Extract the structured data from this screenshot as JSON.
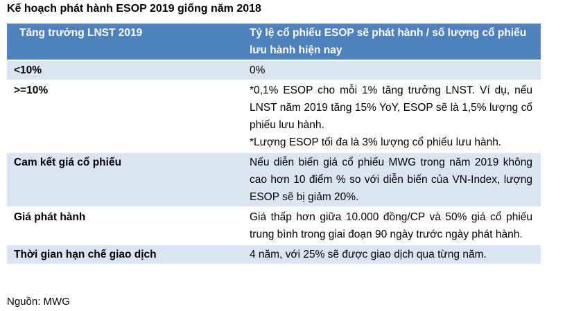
{
  "title": "Kế hoạch phát hành ESOP 2019 giống năm 2018",
  "table": {
    "header": [
      "Tăng trưởng LNST 2019",
      "Tỷ lệ cổ phiếu ESOP sẽ phát hành / số lượng cổ phiếu lưu hành hiện nay"
    ],
    "rows": [
      [
        "<10%",
        "0%"
      ],
      [
        ">=10%",
        [
          "*0,1% ESOP cho mỗi 1% tăng trưởng LNST. Ví dụ, nếu LNST năm 2019 tăng 15% YoY, ESOP sẽ là 1,5% lượng cổ phiếu lưu hành.",
          "*Lượng ESOP tối đa là 3% lượng cổ phiếu lưu hành."
        ]
      ],
      [
        "Cam kết giá cổ phiếu",
        "Nếu diễn biến giá cổ phiếu MWG trong năm 2019 không cao hơn 10 điểm % so với diễn biến của VN-Index, lượng ESOP sẽ bị giảm 20%."
      ],
      [
        "Giá phát hành",
        "Giá thấp hơn giữa 10.000 đồng/CP và 50% giá cổ phiếu trung bình trong giai đoạn 90 ngày trước ngày phát hành."
      ],
      [
        "Thời gian hạn chế giao dịch",
        "4 năm, với 25% sẽ được giao dịch qua từng năm."
      ]
    ]
  },
  "source": "Nguồn: MWG"
}
